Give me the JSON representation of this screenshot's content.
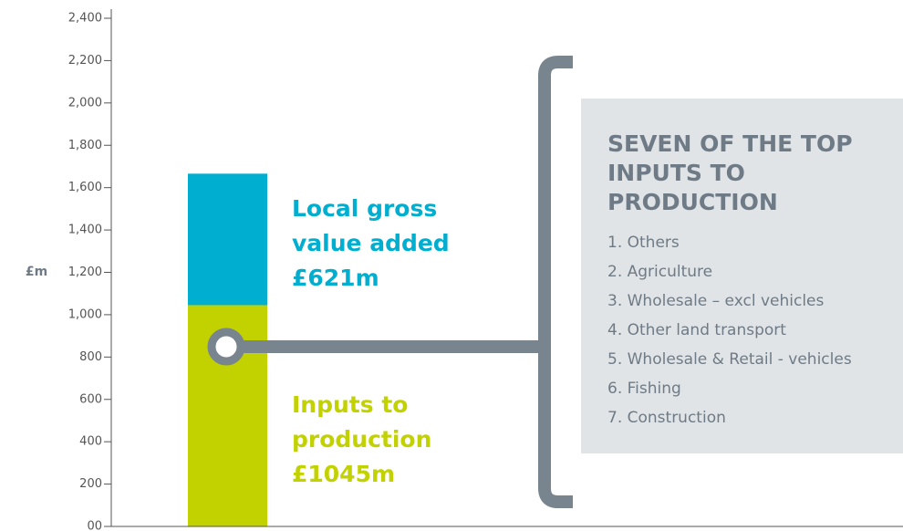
{
  "chart_data": {
    "type": "stacked_bar",
    "ylabel": "£m",
    "categories": [
      null
    ],
    "series": [
      {
        "name": "Inputs to production",
        "color": "#c2d100",
        "values": [
          1045
        ],
        "value_labels": [
          "£1045m"
        ]
      },
      {
        "name": "Local gross value added",
        "color": "#00aecf",
        "values": [
          621
        ],
        "value_labels": [
          "£621m"
        ]
      }
    ],
    "ylim": [
      0,
      2400
    ],
    "yticks": [
      {
        "value": 0,
        "label": "00"
      },
      200,
      400,
      600,
      800,
      {
        "value": 1000,
        "label": "1,000"
      },
      {
        "value": 1200,
        "label": "1,200"
      },
      {
        "value": 1400,
        "label": "1,400"
      },
      {
        "value": 1600,
        "label": "1,600"
      },
      {
        "value": 1800,
        "label": "1,800"
      },
      {
        "value": 2000,
        "label": "2,000"
      },
      {
        "value": 2200,
        "label": "2,200"
      },
      {
        "value": 2400,
        "label": "2,400"
      }
    ],
    "grid": false
  },
  "panel": {
    "title": "SEVEN OF THE TOP INPUTS TO PRODUCTION",
    "items": [
      "1. Others",
      "2. Agriculture",
      "3. Wholesale – excl vehicles",
      "4. Other land transport",
      "5. Wholesale & Retail - vehicles",
      "6. Fishing",
      "7. Construction"
    ]
  }
}
